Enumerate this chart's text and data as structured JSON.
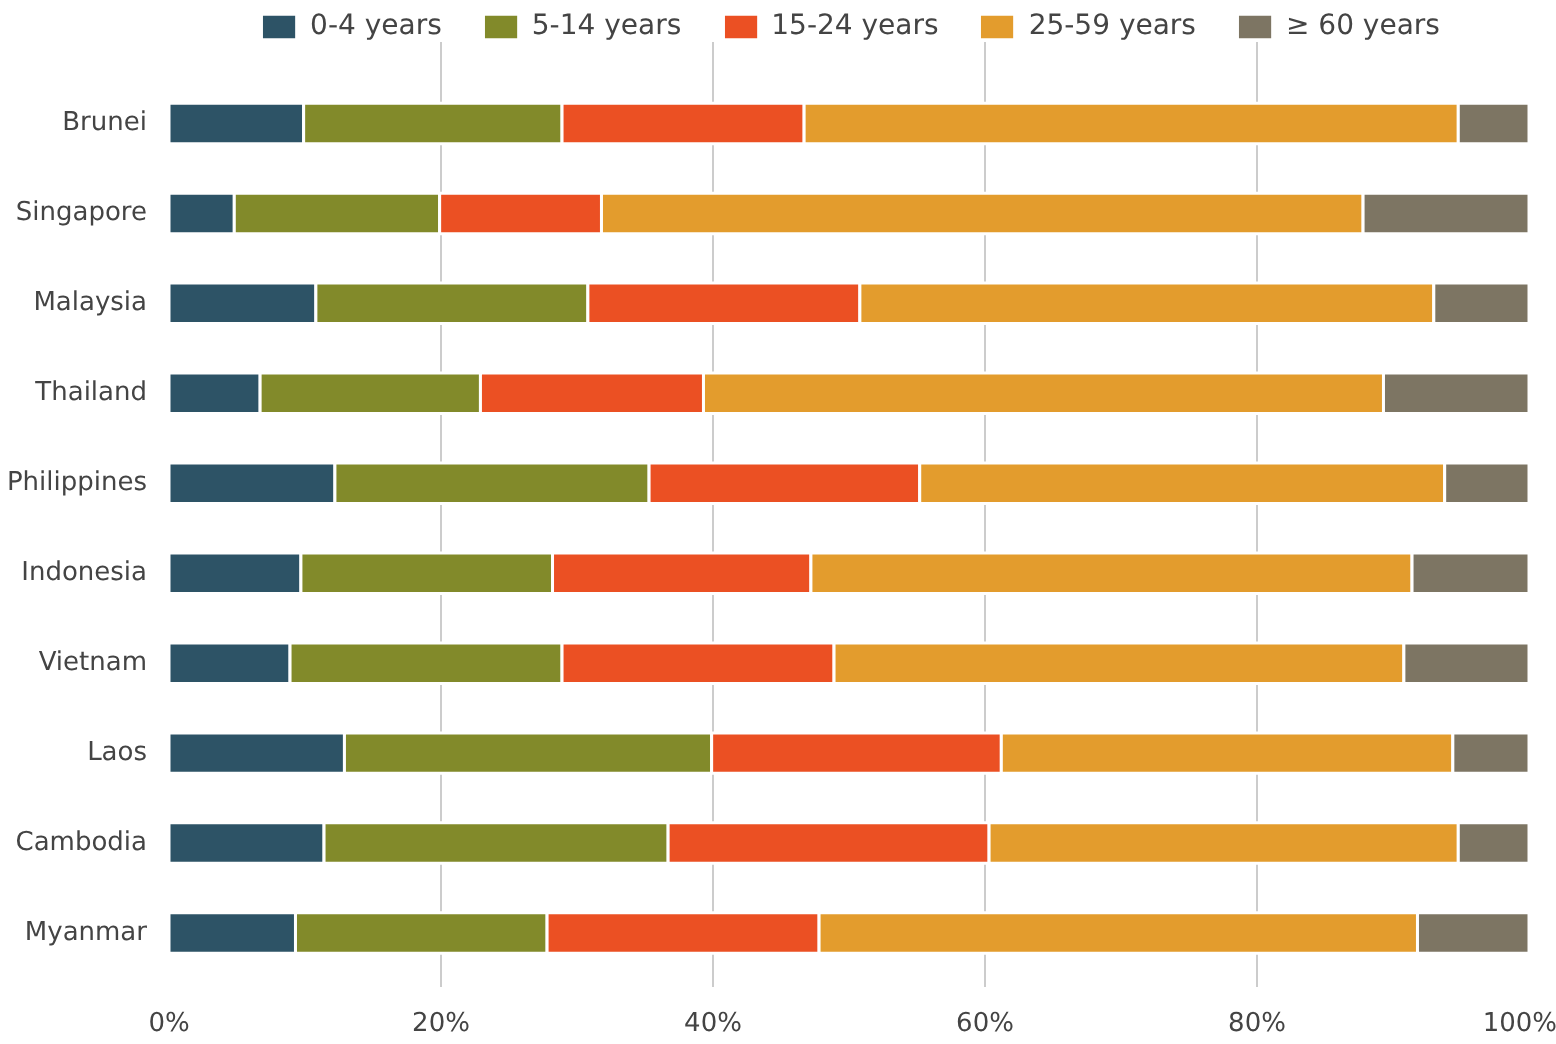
{
  "chart_data": {
    "type": "bar",
    "orientation": "horizontal",
    "stacked": true,
    "categories": [
      "Brunei",
      "Singapore",
      "Malaysia",
      "Thailand",
      "Philippines",
      "Indonesia",
      "Vietnam",
      "Laos",
      "Cambodia",
      "Myanmar"
    ],
    "series": [
      {
        "name": "0-4 years",
        "color": "#2d5366",
        "values": [
          9.9,
          4.8,
          10.8,
          6.7,
          12.2,
          9.7,
          8.9,
          12.9,
          11.4,
          9.3
        ]
      },
      {
        "name": "5-14 years",
        "color": "#828a2a",
        "values": [
          19.0,
          15.1,
          20.0,
          16.2,
          23.1,
          18.5,
          20.0,
          27.0,
          25.3,
          18.5
        ]
      },
      {
        "name": "15-24 years",
        "color": "#eb5023",
        "values": [
          17.8,
          11.9,
          20.0,
          16.4,
          19.9,
          19.0,
          20.0,
          21.3,
          23.6,
          20.0
        ]
      },
      {
        "name": "25-59 years",
        "color": "#e39c2d",
        "values": [
          48.1,
          56.0,
          42.2,
          50.0,
          38.6,
          44.2,
          41.9,
          33.2,
          34.5,
          44.0
        ]
      },
      {
        "name": "≥ 60 years",
        "color": "#7d7563",
        "values": [
          5.2,
          12.2,
          7.0,
          10.7,
          6.2,
          8.6,
          9.2,
          5.6,
          5.2,
          8.2
        ]
      }
    ],
    "xlim": [
      0,
      100
    ],
    "xticks": [
      {
        "value": 0,
        "label": "0%"
      },
      {
        "value": 20,
        "label": "20%"
      },
      {
        "value": 40,
        "label": "40%"
      },
      {
        "value": 60,
        "label": "60%"
      },
      {
        "value": 80,
        "label": "80%"
      },
      {
        "value": 100,
        "label": "100%"
      }
    ],
    "grid": "x",
    "legend": "top"
  }
}
